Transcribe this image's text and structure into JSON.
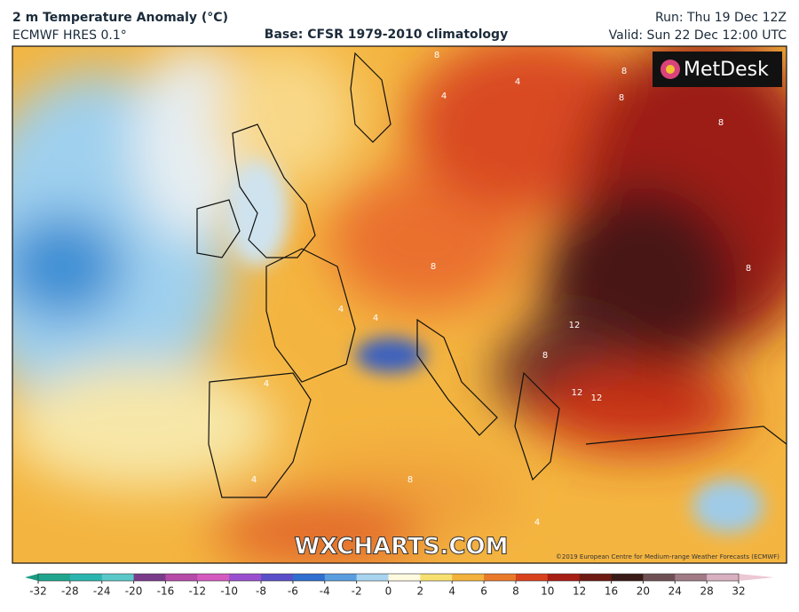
{
  "header": {
    "title": "2 m Temperature Anomaly (°C)",
    "model": "ECMWF HRES 0.1°",
    "base": "Base: CFSR 1979-2010 climatology",
    "run": "Run: Thu 19 Dec 12Z",
    "valid": "Valid: Sun 22 Dec 12:00 UTC"
  },
  "map": {
    "logo": "MetDesk",
    "watermark": "WXCHARTS.COM",
    "copyright": "©2019 European Centre for Medium-range Weather Forecasts (ECMWF)",
    "contour_labels": [
      "8",
      "4",
      "4",
      "8",
      "8",
      "8",
      "4",
      "4",
      "8",
      "12",
      "12",
      "12",
      "8",
      "4",
      "4",
      "8",
      "4",
      "8"
    ]
  },
  "colorbar": {
    "ticks": [
      -32,
      -28,
      -24,
      -20,
      -16,
      -12,
      -10,
      -8,
      -6,
      -4,
      -2,
      0,
      2,
      4,
      6,
      8,
      10,
      12,
      16,
      20,
      24,
      28,
      32
    ]
  }
}
